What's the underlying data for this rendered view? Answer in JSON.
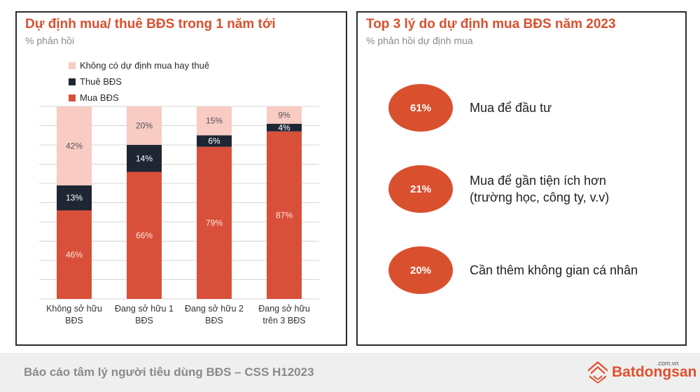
{
  "left_panel": {
    "title": "Dự định mua/ thuê BĐS trong 1 năm tới",
    "subtitle": "% phản hồi"
  },
  "chart_data": {
    "type": "bar",
    "stacked": true,
    "categories": [
      "Không sở hữu BĐS",
      "Đang sở hữu 1 BĐS",
      "Đang sở hữu 2 BĐS",
      "Đang sở hữu trên 3 BĐS"
    ],
    "category_lines": [
      [
        "Không sở hữu",
        "BĐS"
      ],
      [
        "Đang sở hữu 1",
        "BĐS"
      ],
      [
        "Đang sở hữu 2",
        "BĐS"
      ],
      [
        "Đang sở hữu",
        "trên 3 BĐS"
      ]
    ],
    "series": [
      {
        "name": "Mua BĐS",
        "color": "#d9503a",
        "values": [
          46,
          66,
          79,
          87
        ],
        "labels": [
          "46%",
          "66%",
          "79%",
          "87%"
        ]
      },
      {
        "name": "Thuê BĐS",
        "color": "#1e2533",
        "values": [
          13,
          14,
          6,
          4
        ],
        "labels": [
          "13%",
          "14%",
          "6%",
          "4%"
        ]
      },
      {
        "name": "Không có dự định mua hay thuê",
        "color": "#f8cbc3",
        "values": [
          42,
          20,
          15,
          9
        ],
        "labels": [
          "42%",
          "20%",
          "15%",
          "9%"
        ]
      }
    ],
    "legend_order": [
      2,
      1,
      0
    ],
    "ylim": [
      0,
      100
    ],
    "grid": true,
    "legend_position": "top-left"
  },
  "right_panel": {
    "title": "Top 3 lý do dự định mua BĐS năm 2023",
    "subtitle": "% phản hồi dự định mua",
    "reasons": [
      {
        "value": "61%",
        "text": "Mua để đầu tư"
      },
      {
        "value": "21%",
        "text": "Mua để gần tiện ích hơn\n(trường học, công ty, v.v)"
      },
      {
        "value": "20%",
        "text": "Cần thêm không gian cá nhân"
      }
    ]
  },
  "footer": {
    "text": "Báo cáo tâm lý người tiêu dùng BĐS – CSS H12023",
    "brand_name": "Batdongsan",
    "brand_domain": ".com.vn",
    "brand_icon": "batdongsan-logo-icon"
  }
}
